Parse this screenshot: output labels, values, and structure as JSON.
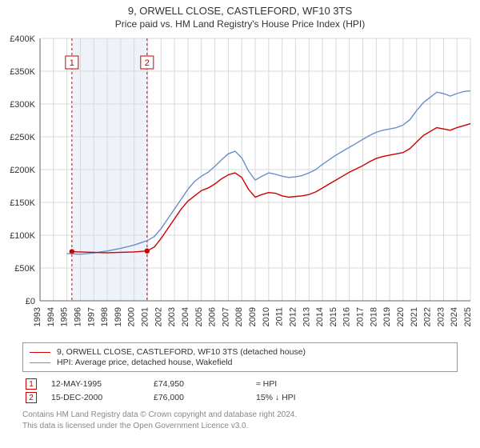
{
  "title1": "9, ORWELL CLOSE, CASTLEFORD, WF10 3TS",
  "title2": "Price paid vs. HM Land Registry's House Price Index (HPI)",
  "chart": {
    "type": "line",
    "background_color": "#ffffff",
    "grid_color": "#d9d9d9",
    "shade_color": "#eef2fa",
    "shade_xstart": 1995.37,
    "shade_xend": 2000.96,
    "axis_color": "#666666",
    "xlim": [
      1993,
      2025
    ],
    "ylim": [
      0,
      400000
    ],
    "xtick_step": 1,
    "ytick_step": 50000,
    "y_ticks_labels": [
      "£0",
      "£50K",
      "£100K",
      "£150K",
      "£200K",
      "£250K",
      "£300K",
      "£350K",
      "£400K"
    ],
    "x_ticks_labels": [
      "1993",
      "1994",
      "1995",
      "1996",
      "1997",
      "1998",
      "1999",
      "2000",
      "2001",
      "2002",
      "2003",
      "2004",
      "2005",
      "2006",
      "2007",
      "2008",
      "2009",
      "2010",
      "2011",
      "2012",
      "2013",
      "2014",
      "2015",
      "2016",
      "2017",
      "2018",
      "2019",
      "2020",
      "2021",
      "2022",
      "2023",
      "2024",
      "2025"
    ],
    "label_fontsize": 11,
    "line_width": 1.4,
    "marker_radius": 3.2,
    "series_property": {
      "color": "#cc0000",
      "data": [
        [
          1995.37,
          74950
        ],
        [
          1996,
          74500
        ],
        [
          1997,
          73800
        ],
        [
          1998,
          73200
        ],
        [
          1999,
          73800
        ],
        [
          2000,
          74500
        ],
        [
          2000.96,
          76000
        ],
        [
          2001.5,
          82000
        ],
        [
          2002,
          95000
        ],
        [
          2002.5,
          110000
        ],
        [
          2003,
          125000
        ],
        [
          2003.5,
          140000
        ],
        [
          2004,
          152000
        ],
        [
          2004.5,
          160000
        ],
        [
          2005,
          168000
        ],
        [
          2005.5,
          172000
        ],
        [
          2006,
          178000
        ],
        [
          2006.5,
          186000
        ],
        [
          2007,
          192000
        ],
        [
          2007.5,
          195000
        ],
        [
          2008,
          188000
        ],
        [
          2008.5,
          170000
        ],
        [
          2009,
          158000
        ],
        [
          2009.5,
          162000
        ],
        [
          2010,
          165000
        ],
        [
          2010.5,
          164000
        ],
        [
          2011,
          160000
        ],
        [
          2011.5,
          158000
        ],
        [
          2012,
          159000
        ],
        [
          2012.5,
          160000
        ],
        [
          2013,
          162000
        ],
        [
          2013.5,
          166000
        ],
        [
          2014,
          172000
        ],
        [
          2014.5,
          178000
        ],
        [
          2015,
          184000
        ],
        [
          2015.5,
          190000
        ],
        [
          2016,
          196000
        ],
        [
          2016.5,
          201000
        ],
        [
          2017,
          206000
        ],
        [
          2017.5,
          212000
        ],
        [
          2018,
          217000
        ],
        [
          2018.5,
          220000
        ],
        [
          2019,
          222000
        ],
        [
          2019.5,
          224000
        ],
        [
          2020,
          226000
        ],
        [
          2020.5,
          232000
        ],
        [
          2021,
          242000
        ],
        [
          2021.5,
          252000
        ],
        [
          2022,
          258000
        ],
        [
          2022.5,
          264000
        ],
        [
          2023,
          262000
        ],
        [
          2023.5,
          260000
        ],
        [
          2024,
          264000
        ],
        [
          2024.5,
          267000
        ],
        [
          2025,
          270000
        ]
      ]
    },
    "series_hpi": {
      "color": "#6b8fc9",
      "data": [
        [
          1995.0,
          72000
        ],
        [
          1996,
          71000
        ],
        [
          1997,
          73000
        ],
        [
          1998,
          76000
        ],
        [
          1999,
          80000
        ],
        [
          2000,
          85000
        ],
        [
          2001,
          92000
        ],
        [
          2001.5,
          98000
        ],
        [
          2002,
          110000
        ],
        [
          2002.5,
          125000
        ],
        [
          2003,
          140000
        ],
        [
          2003.5,
          155000
        ],
        [
          2004,
          170000
        ],
        [
          2004.5,
          182000
        ],
        [
          2005,
          190000
        ],
        [
          2005.5,
          196000
        ],
        [
          2006,
          205000
        ],
        [
          2006.5,
          215000
        ],
        [
          2007,
          224000
        ],
        [
          2007.5,
          228000
        ],
        [
          2008,
          218000
        ],
        [
          2008.5,
          198000
        ],
        [
          2009,
          184000
        ],
        [
          2009.5,
          190000
        ],
        [
          2010,
          195000
        ],
        [
          2010.5,
          193000
        ],
        [
          2011,
          190000
        ],
        [
          2011.5,
          188000
        ],
        [
          2012,
          189000
        ],
        [
          2012.5,
          191000
        ],
        [
          2013,
          195000
        ],
        [
          2013.5,
          200000
        ],
        [
          2014,
          208000
        ],
        [
          2014.5,
          215000
        ],
        [
          2015,
          222000
        ],
        [
          2015.5,
          228000
        ],
        [
          2016,
          234000
        ],
        [
          2016.5,
          240000
        ],
        [
          2017,
          246000
        ],
        [
          2017.5,
          252000
        ],
        [
          2018,
          257000
        ],
        [
          2018.5,
          260000
        ],
        [
          2019,
          262000
        ],
        [
          2019.5,
          264000
        ],
        [
          2020,
          268000
        ],
        [
          2020.5,
          276000
        ],
        [
          2021,
          290000
        ],
        [
          2021.5,
          302000
        ],
        [
          2022,
          310000
        ],
        [
          2022.5,
          318000
        ],
        [
          2023,
          316000
        ],
        [
          2023.5,
          312000
        ],
        [
          2024,
          316000
        ],
        [
          2024.5,
          319000
        ],
        [
          2025,
          320000
        ]
      ]
    },
    "sale_markers": [
      {
        "badge": "1",
        "x": 1995.37,
        "y": 74950,
        "line_dash": "3,3"
      },
      {
        "badge": "2",
        "x": 2000.96,
        "y": 76000,
        "line_dash": "3,3"
      }
    ],
    "marker_badge_border": "#cc0000",
    "marker_badge_text": "#cc0000",
    "marker_fill": "#cc0000"
  },
  "legend": {
    "series_property": {
      "label": "9, ORWELL CLOSE, CASTLEFORD, WF10 3TS (detached house)",
      "color": "#cc0000"
    },
    "series_hpi": {
      "label": "HPI: Average price, detached house, Wakefield",
      "color": "#6b8fc9"
    }
  },
  "sales": [
    {
      "badge": "1",
      "date": "12-MAY-1995",
      "price": "£74,950",
      "delta": "≈ HPI"
    },
    {
      "badge": "2",
      "date": "15-DEC-2000",
      "price": "£76,000",
      "delta": "15% ↓ HPI"
    }
  ],
  "footer": {
    "line1": "Contains HM Land Registry data © Crown copyright and database right 2024.",
    "line2": "This data is licensed under the Open Government Licence v3.0."
  }
}
